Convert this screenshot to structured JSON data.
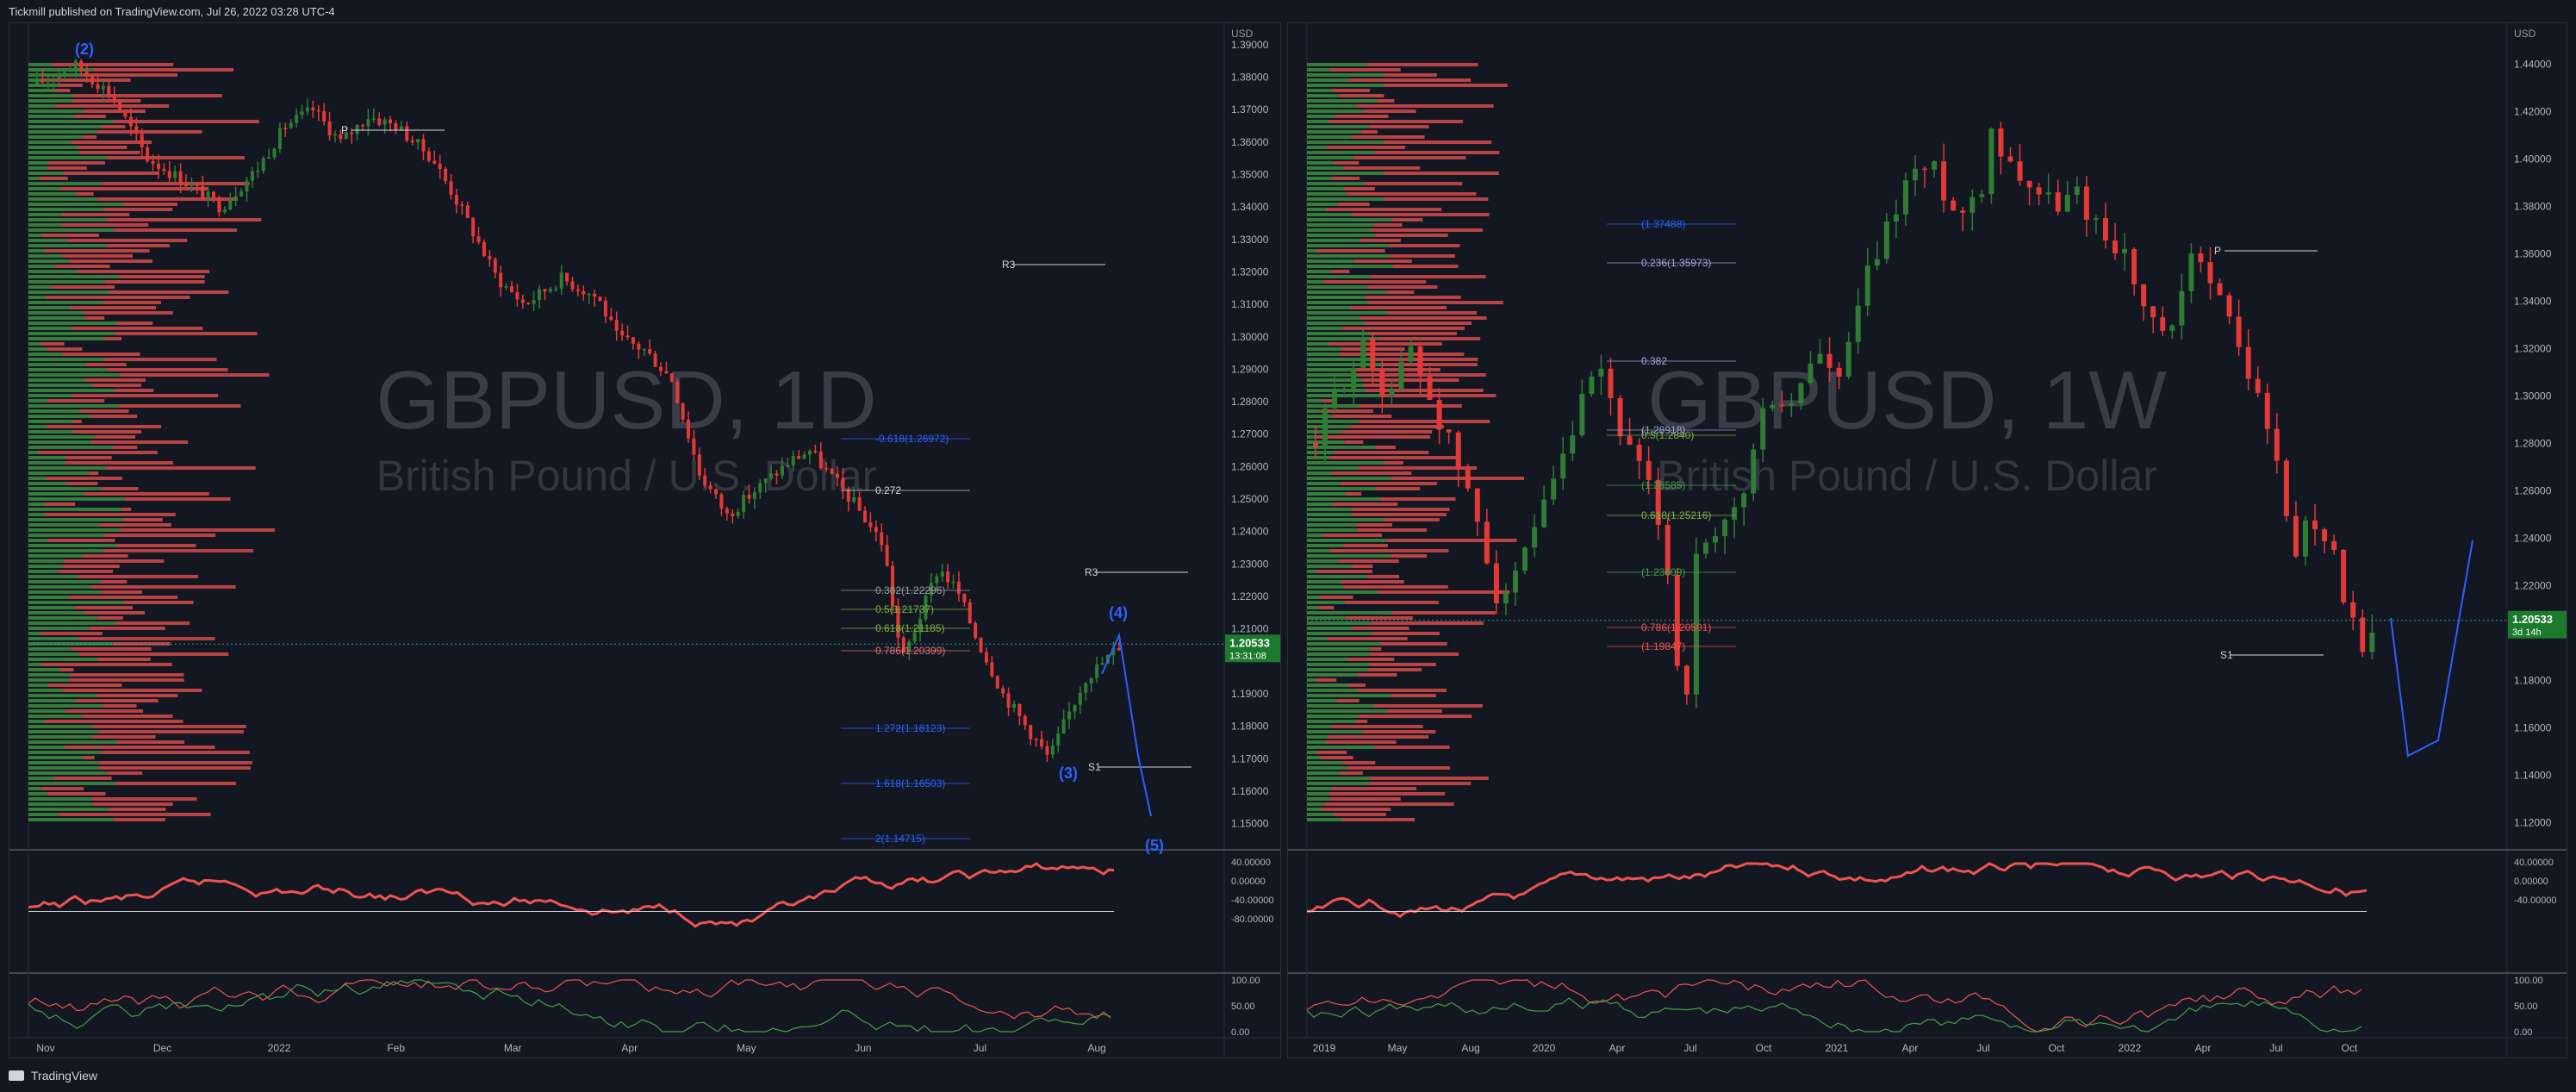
{
  "header": {
    "publisher": "Tickmill published on TradingView.com, Jul 26, 2022 03:28 UTC-4"
  },
  "footer": {
    "brand": "TradingView"
  },
  "colors": {
    "bull": "#2e7d32",
    "bear": "#e53935",
    "vpUp": "#43a047",
    "vpDown": "#ef5350",
    "bg": "#131722"
  },
  "chart_data": [
    {
      "type": "candlestick",
      "panel": "left",
      "watermark_symbol": "GBPUSD, 1D",
      "watermark_name": "British Pound / U.S. Dollar",
      "currency": "USD",
      "price_ticks": [
        "1.39000",
        "1.38000",
        "1.37000",
        "1.36000",
        "1.35000",
        "1.34000",
        "1.33000",
        "1.32000",
        "1.31000",
        "1.30000",
        "1.29000",
        "1.28000",
        "1.27000",
        "1.26000",
        "1.25000",
        "1.24000",
        "1.23000",
        "1.22000",
        "1.21000",
        "1.19000",
        "1.18000",
        "1.17000",
        "1.16000",
        "1.15000"
      ],
      "ylim": [
        1.143,
        1.395
      ],
      "x_labels": [
        "Nov",
        "Dec",
        "2022",
        "Feb",
        "Mar",
        "Apr",
        "May",
        "Jun",
        "Jul",
        "Aug"
      ],
      "last_price": "1.20533",
      "countdown": "13:31:08",
      "path": [
        [
          0,
          1.378
        ],
        [
          20,
          1.384
        ],
        [
          40,
          1.375
        ],
        [
          60,
          1.355
        ],
        [
          80,
          1.348
        ],
        [
          100,
          1.34
        ],
        [
          120,
          1.352
        ],
        [
          135,
          1.365
        ],
        [
          150,
          1.37
        ],
        [
          165,
          1.36
        ],
        [
          180,
          1.368
        ],
        [
          195,
          1.365
        ],
        [
          215,
          1.355
        ],
        [
          230,
          1.34
        ],
        [
          250,
          1.318
        ],
        [
          265,
          1.31
        ],
        [
          285,
          1.318
        ],
        [
          305,
          1.312
        ],
        [
          315,
          1.3
        ],
        [
          330,
          1.296
        ],
        [
          345,
          1.287
        ],
        [
          360,
          1.258
        ],
        [
          375,
          1.245
        ],
        [
          395,
          1.255
        ],
        [
          410,
          1.262
        ],
        [
          420,
          1.265
        ],
        [
          430,
          1.258
        ],
        [
          445,
          1.248
        ],
        [
          460,
          1.236
        ],
        [
          470,
          1.2
        ],
        [
          480,
          1.214
        ],
        [
          490,
          1.229
        ],
        [
          500,
          1.222
        ],
        [
          510,
          1.208
        ],
        [
          525,
          1.19
        ],
        [
          540,
          1.178
        ],
        [
          550,
          1.17
        ],
        [
          560,
          1.183
        ],
        [
          570,
          1.195
        ],
        [
          580,
          1.2
        ],
        [
          590,
          1.206
        ]
      ],
      "elliott_labels": [
        "(2)",
        "(3)",
        "(4)",
        "(5)"
      ],
      "fib_labels": [
        "-0.618(1.26972)",
        "0.272",
        "0.382(1.22296)",
        "0.5(1.21737)",
        "0.618(1.21185)",
        "0.786(1.20399)",
        "1.272(1.18123)",
        "1.618(1.16503)",
        "2(1.14715)"
      ],
      "pivot_labels": [
        "P",
        "R3",
        "R3",
        "S1"
      ],
      "indicators": {
        "rsi_ticks": [
          "40.00000",
          "0.00000",
          "-40.00000",
          "-80.00000"
        ],
        "stoch_ticks": [
          "100.00",
          "50.00",
          "0.00"
        ]
      }
    },
    {
      "type": "candlestick",
      "panel": "right",
      "watermark_symbol": "GBPUSD, 1W",
      "watermark_name": "British Pound / U.S. Dollar",
      "currency": "USD",
      "price_ticks": [
        "1.44000",
        "1.42000",
        "1.40000",
        "1.38000",
        "1.36000",
        "1.34000",
        "1.32000",
        "1.30000",
        "1.28000",
        "1.26000",
        "1.24000",
        "1.22000",
        "1.18000",
        "1.16000",
        "1.14000",
        "1.12000"
      ],
      "ylim": [
        1.11,
        1.455
      ],
      "x_labels": [
        "2019",
        "May",
        "Aug",
        "2020",
        "Apr",
        "Jul",
        "Oct",
        "2021",
        "Apr",
        "Jul",
        "Oct",
        "2022",
        "Apr",
        "Jul",
        "Oct"
      ],
      "last_price": "1.20533",
      "countdown": "3d 14h",
      "path": [
        [
          0,
          1.28
        ],
        [
          15,
          1.305
        ],
        [
          30,
          1.32
        ],
        [
          45,
          1.3
        ],
        [
          60,
          1.32
        ],
        [
          75,
          1.295
        ],
        [
          90,
          1.27
        ],
        [
          105,
          1.24
        ],
        [
          115,
          1.215
        ],
        [
          125,
          1.22
        ],
        [
          140,
          1.245
        ],
        [
          155,
          1.27
        ],
        [
          170,
          1.3
        ],
        [
          180,
          1.31
        ],
        [
          195,
          1.28
        ],
        [
          210,
          1.26
        ],
        [
          220,
          1.24
        ],
        [
          232,
          1.16
        ],
        [
          240,
          1.23
        ],
        [
          255,
          1.24
        ],
        [
          270,
          1.26
        ],
        [
          285,
          1.3
        ],
        [
          300,
          1.295
        ],
        [
          315,
          1.32
        ],
        [
          330,
          1.305
        ],
        [
          345,
          1.345
        ],
        [
          360,
          1.37
        ],
        [
          375,
          1.395
        ],
        [
          390,
          1.395
        ],
        [
          405,
          1.375
        ],
        [
          420,
          1.39
        ],
        [
          425,
          1.415
        ],
        [
          435,
          1.4
        ],
        [
          450,
          1.39
        ],
        [
          465,
          1.38
        ],
        [
          480,
          1.385
        ],
        [
          495,
          1.37
        ],
        [
          510,
          1.36
        ],
        [
          525,
          1.33
        ],
        [
          540,
          1.325
        ],
        [
          550,
          1.355
        ],
        [
          560,
          1.36
        ],
        [
          570,
          1.34
        ],
        [
          580,
          1.325
        ],
        [
          590,
          1.305
        ],
        [
          600,
          1.29
        ],
        [
          610,
          1.255
        ],
        [
          620,
          1.23
        ],
        [
          625,
          1.25
        ],
        [
          635,
          1.245
        ],
        [
          645,
          1.225
        ],
        [
          655,
          1.2
        ],
        [
          660,
          1.188
        ],
        [
          668,
          1.205
        ]
      ],
      "fib_labels": [
        "0.236(1.35973)",
        "0.382",
        "0.5(1.2840)",
        "0.618(1.25216)",
        "0.786(1.20501)",
        "(1.37488)",
        "(1.28918)",
        "(1.26585)",
        "(1.23009)",
        "(1.19847)"
      ],
      "pivot_labels": [
        "P",
        "S1"
      ],
      "indicators": {
        "rsi_ticks": [
          "40.00000",
          "0.00000",
          "-40.00000"
        ],
        "stoch_ticks": [
          "100.00",
          "50.00",
          "0.00"
        ]
      }
    }
  ]
}
